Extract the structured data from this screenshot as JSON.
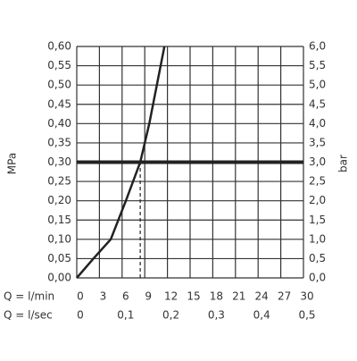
{
  "chart_data": {
    "type": "line",
    "y_label": "MPa",
    "y2_label": "bar",
    "x_label": "Q = l/min",
    "x2_label": "Q = l/sec",
    "xlim": [
      0,
      30
    ],
    "xticks": [
      0,
      3,
      6,
      9,
      12,
      15,
      18,
      21,
      24,
      27,
      30
    ],
    "x2lim": [
      0,
      0.5
    ],
    "x2ticks": [
      0,
      {
        "value": 0.1,
        "label": "0,1"
      },
      {
        "value": 0.2,
        "label": "0,2"
      },
      {
        "value": 0.3,
        "label": "0,3"
      },
      {
        "value": 0.4,
        "label": "0,4"
      },
      {
        "value": 0.5,
        "label": "0,5"
      }
    ],
    "ylim": [
      0,
      0.6
    ],
    "yticks": [
      {
        "value": 0,
        "label": "0,00"
      },
      {
        "value": 0.05,
        "label": "0,05"
      },
      {
        "value": 0.1,
        "label": "0,10"
      },
      {
        "value": 0.15,
        "label": "0,15"
      },
      {
        "value": 0.2,
        "label": "0,20"
      },
      {
        "value": 0.25,
        "label": "0,25"
      },
      {
        "value": 0.3,
        "label": "0,30"
      },
      {
        "value": 0.35,
        "label": "0,35"
      },
      {
        "value": 0.4,
        "label": "0,40"
      },
      {
        "value": 0.45,
        "label": "0,45"
      },
      {
        "value": 0.5,
        "label": "0,50"
      },
      {
        "value": 0.55,
        "label": "0,55"
      },
      {
        "value": 0.6,
        "label": "0,60"
      }
    ],
    "y2lim": [
      0,
      6
    ],
    "y2ticks": [
      {
        "value": 0,
        "label": "0,0"
      },
      {
        "value": 0.5,
        "label": "0,5"
      },
      {
        "value": 1,
        "label": "1,0"
      },
      {
        "value": 1.5,
        "label": "1,5"
      },
      {
        "value": 2,
        "label": "2,0"
      },
      {
        "value": 2.5,
        "label": "2,5"
      },
      {
        "value": 3,
        "label": "3,0"
      },
      {
        "value": 3.5,
        "label": "3,5"
      },
      {
        "value": 4,
        "label": "4,0"
      },
      {
        "value": 4.5,
        "label": "4,5"
      },
      {
        "value": 5,
        "label": "5,0"
      },
      {
        "value": 5.5,
        "label": "5,5"
      },
      {
        "value": 6,
        "label": "6,0"
      }
    ],
    "grid": true,
    "series": [
      {
        "color": "#222222",
        "x": [
          0,
          2.2,
          4.5,
          6.5,
          8.4,
          9.6,
          10.6,
          11.6
        ],
        "values": [
          0,
          0.05,
          0.1,
          0.2,
          0.3,
          0.4,
          0.5,
          0.6
        ]
      }
    ],
    "reference_line": 0.3,
    "marker_x": 8.4
  }
}
